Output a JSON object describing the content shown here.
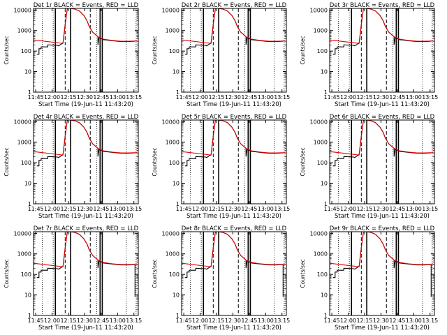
{
  "chart_data": [
    {
      "type": "line",
      "title": "Det 1r BLACK = Events, RED = LLD",
      "xlabel": "Start Time (19-Jun-11 11:43:20)",
      "ylabel": "Counts/sec",
      "x_ticks": [
        "11:45",
        "12:00",
        "12:15",
        "12:30",
        "12:45",
        "13:00",
        "13:15"
      ],
      "y_ticks": [
        "1",
        "10",
        "100",
        "1000",
        "10000"
      ],
      "y_scale": "log",
      "xlim": [
        "11:43",
        "13:19"
      ],
      "ylim": [
        1,
        12000
      ],
      "end_drop": false
    },
    {
      "type": "line",
      "title": "Det 2r BLACK = Events, RED = LLD",
      "xlabel": "Start Time (19-Jun-11 11:43:20)",
      "ylabel": "Counts/sec",
      "x_ticks": [
        "11:45",
        "12:00",
        "12:15",
        "12:30",
        "12:45",
        "13:00",
        "13:15"
      ],
      "y_ticks": [
        "1",
        "10",
        "100",
        "1000",
        "10000"
      ],
      "y_scale": "log",
      "xlim": [
        "11:43",
        "13:19"
      ],
      "ylim": [
        1,
        12000
      ],
      "end_drop": false
    },
    {
      "type": "line",
      "title": "Det 3r BLACK = Events, RED = LLD",
      "xlabel": "Start Time (19-Jun-11 11:43:20)",
      "ylabel": "Counts/sec",
      "x_ticks": [
        "11:45",
        "12:00",
        "12:15",
        "12:30",
        "12:45",
        "13:00",
        "13:15"
      ],
      "y_ticks": [
        "1",
        "10",
        "100",
        "1000",
        "10000"
      ],
      "y_scale": "log",
      "xlim": [
        "11:43",
        "13:19"
      ],
      "ylim": [
        1,
        12000
      ],
      "end_drop": false
    },
    {
      "type": "line",
      "title": "Det 4r BLACK = Events, RED = LLD",
      "xlabel": "Start Time (19-Jun-11 11:43:20)",
      "ylabel": "Counts/sec",
      "x_ticks": [
        "11:45",
        "12:00",
        "12:15",
        "12:30",
        "12:45",
        "13:00",
        "13:15"
      ],
      "y_ticks": [
        "1",
        "10",
        "100",
        "1000",
        "10000"
      ],
      "y_scale": "log",
      "xlim": [
        "11:43",
        "13:19"
      ],
      "ylim": [
        1,
        12000
      ],
      "end_drop": false
    },
    {
      "type": "line",
      "title": "Det 5r BLACK = Events, RED = LLD",
      "xlabel": "Start Time (19-Jun-11 11:43:20)",
      "ylabel": "Counts/sec",
      "x_ticks": [
        "11:45",
        "12:00",
        "12:15",
        "12:30",
        "12:45",
        "13:00",
        "13:15"
      ],
      "y_ticks": [
        "1",
        "10",
        "100",
        "1000",
        "10000"
      ],
      "y_scale": "log",
      "xlim": [
        "11:43",
        "13:19"
      ],
      "ylim": [
        1,
        12000
      ],
      "end_drop": false
    },
    {
      "type": "line",
      "title": "Det 6r BLACK = Events, RED = LLD",
      "xlabel": "Start Time (19-Jun-11 11:43:20)",
      "ylabel": "Counts/sec",
      "x_ticks": [
        "11:45",
        "12:00",
        "12:15",
        "12:30",
        "12:45",
        "13:00",
        "13:15"
      ],
      "y_ticks": [
        "1",
        "10",
        "100",
        "1000",
        "10000"
      ],
      "y_scale": "log",
      "xlim": [
        "11:43",
        "13:19"
      ],
      "ylim": [
        1,
        12000
      ],
      "end_drop": false
    },
    {
      "type": "line",
      "title": "Det 7r BLACK = Events, RED = LLD",
      "xlabel": "Start Time (19-Jun-11 11:43:20)",
      "ylabel": "Counts/sec",
      "x_ticks": [
        "11:45",
        "12:00",
        "12:15",
        "12:30",
        "12:45",
        "13:00",
        "13:15"
      ],
      "y_ticks": [
        "1",
        "10",
        "100",
        "1000",
        "10000"
      ],
      "y_scale": "log",
      "xlim": [
        "11:43",
        "13:19"
      ],
      "ylim": [
        1,
        12000
      ],
      "end_drop": true
    },
    {
      "type": "line",
      "title": "Det 8r BLACK = Events, RED = LLD",
      "xlabel": "Start Time (19-Jun-11 11:43:20)",
      "ylabel": "Counts/sec",
      "x_ticks": [
        "11:45",
        "12:00",
        "12:15",
        "12:30",
        "12:45",
        "13:00",
        "13:15"
      ],
      "y_ticks": [
        "1",
        "10",
        "100",
        "1000",
        "10000"
      ],
      "y_scale": "log",
      "xlim": [
        "11:43",
        "13:19"
      ],
      "ylim": [
        1,
        12000
      ],
      "end_drop": true
    },
    {
      "type": "line",
      "title": "Det 9r BLACK = Events, RED = LLD",
      "xlabel": "Start Time (19-Jun-11 11:43:20)",
      "ylabel": "Counts/sec",
      "x_ticks": [
        "11:45",
        "12:00",
        "12:15",
        "12:30",
        "12:45",
        "13:00",
        "13:15"
      ],
      "y_ticks": [
        "1",
        "10",
        "100",
        "1000",
        "10000"
      ],
      "y_scale": "log",
      "xlim": [
        "11:43",
        "13:19"
      ],
      "ylim": [
        1,
        12000
      ],
      "end_drop": true
    }
  ],
  "series_colors": {
    "events": "#000000",
    "lld": "#e00000"
  },
  "lld_series": {
    "times": [
      "11:43",
      "12:09",
      "12:10",
      "12:12",
      "12:14",
      "12:17",
      "12:21",
      "12:25",
      "12:29",
      "12:32",
      "12:34",
      "12:37",
      "12:42",
      "12:47",
      "12:55",
      "13:03",
      "13:10",
      "13:18"
    ],
    "values": [
      350,
      240,
      250,
      2000,
      12000,
      12000,
      11000,
      9000,
      5500,
      3000,
      1600,
      850,
      500,
      380,
      330,
      300,
      300,
      310
    ]
  },
  "events_series": {
    "times": [
      "11:46",
      "11:48",
      "11:48",
      "11:50",
      "11:50",
      "11:56",
      "11:56",
      "12:05",
      "12:06",
      "12:09",
      "12:10",
      "12:12",
      "12:14",
      "12:17",
      "12:21",
      "12:25",
      "12:29",
      "12:32",
      "12:34",
      "12:37",
      "12:42",
      "12:42",
      "12:43",
      "12:47",
      "12:55",
      "13:03",
      "13:10",
      "13:16"
    ],
    "values": [
      70,
      70,
      130,
      130,
      160,
      160,
      200,
      190,
      180,
      230,
      240,
      2000,
      12000,
      12000,
      11000,
      9000,
      5500,
      3000,
      1600,
      850,
      500,
      200,
      450,
      360,
      320,
      290,
      290,
      300
    ]
  },
  "markers": {
    "dotted": [
      "11:51",
      "12:01",
      "12:41",
      "13:08",
      "13:17"
    ],
    "dashed": [
      "12:12",
      "12:35"
    ],
    "solid": [
      "12:03",
      "12:17",
      "12:44",
      "12:46"
    ]
  }
}
